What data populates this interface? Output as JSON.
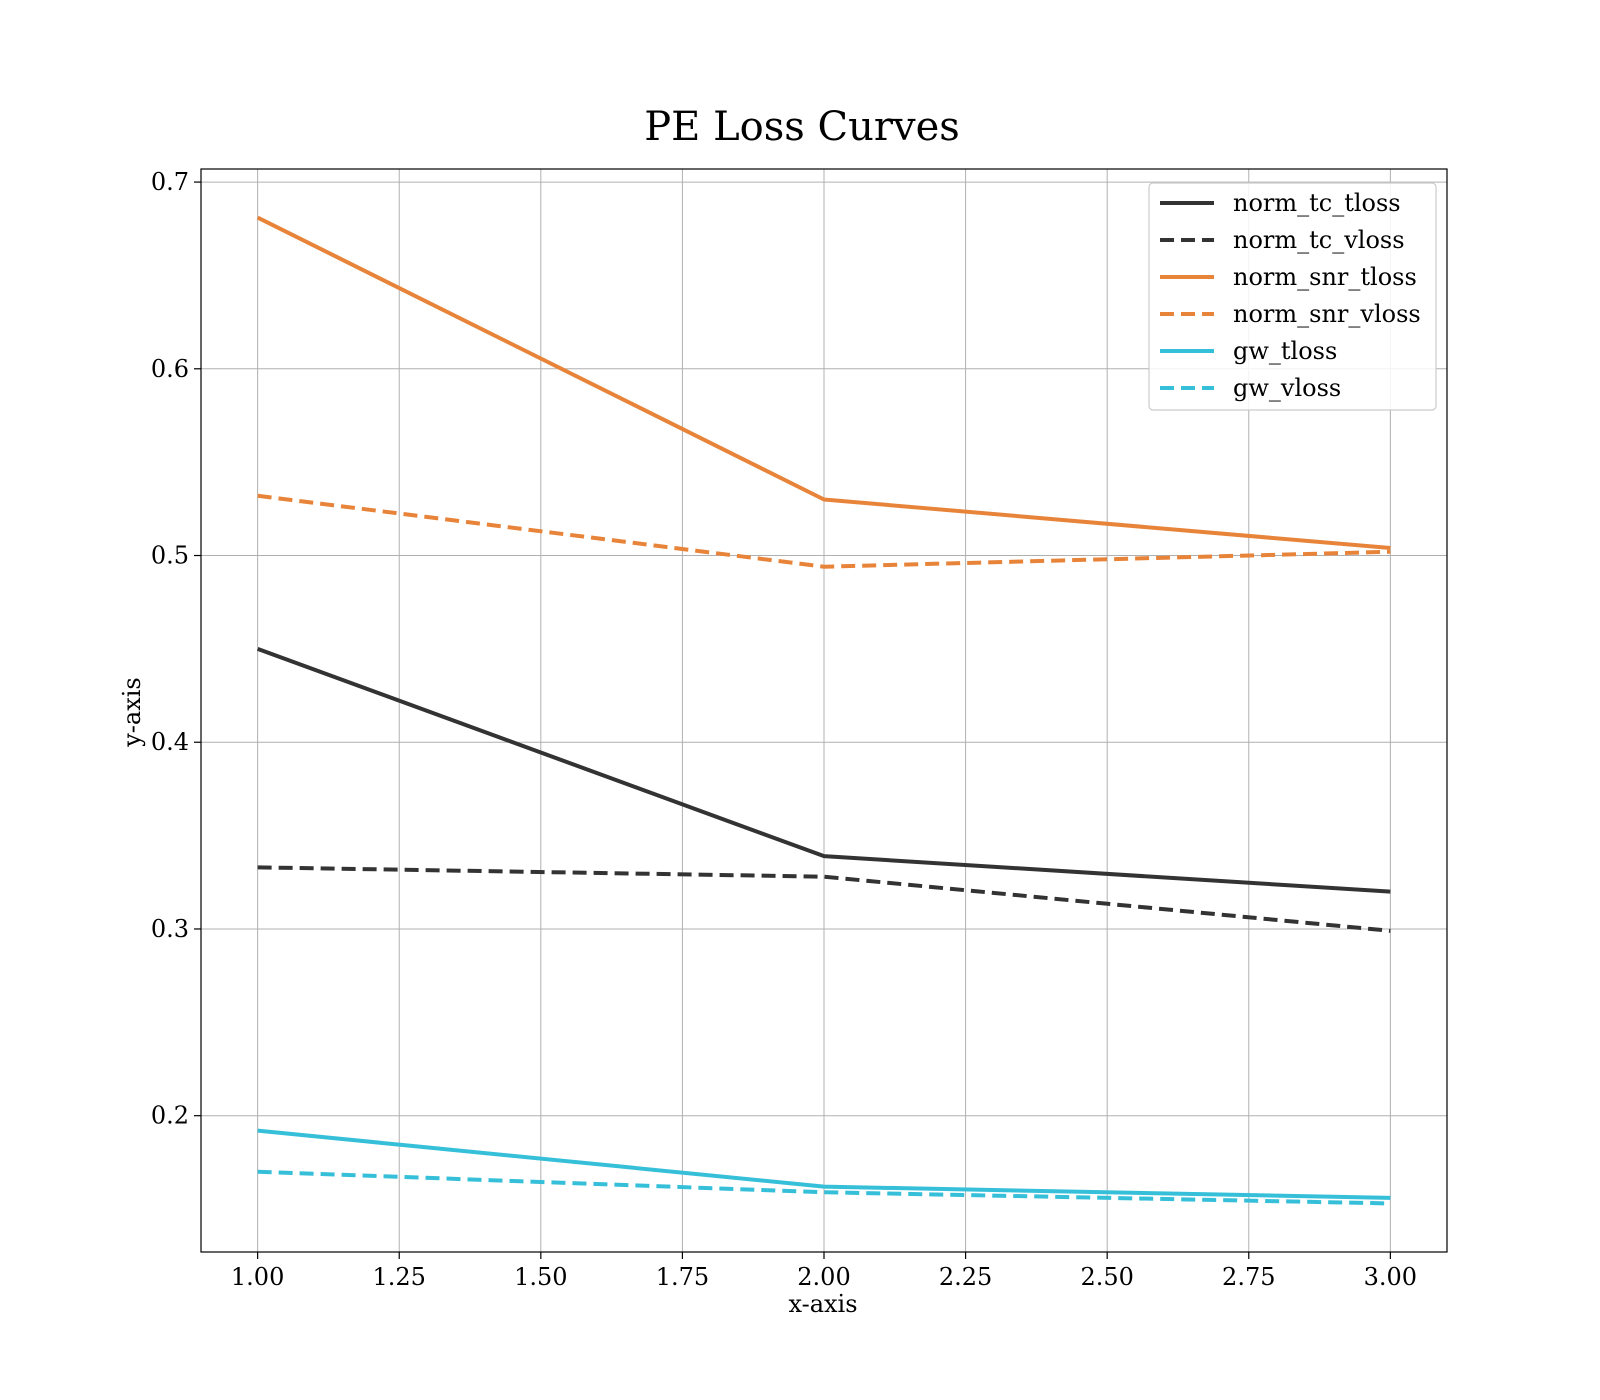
{
  "chart_data": {
    "type": "line",
    "title": "PE Loss Curves",
    "xlabel": "x-axis",
    "ylabel": "y-axis",
    "xlim": [
      0.9,
      3.1
    ],
    "ylim": [
      0.127,
      0.707
    ],
    "xticks": [
      1.0,
      1.25,
      1.5,
      1.75,
      2.0,
      2.25,
      2.5,
      2.75,
      3.0
    ],
    "xtick_labels": [
      "1.00",
      "1.25",
      "1.50",
      "1.75",
      "2.00",
      "2.25",
      "2.50",
      "2.75",
      "3.00"
    ],
    "yticks": [
      0.2,
      0.3,
      0.4,
      0.5,
      0.6,
      0.7
    ],
    "ytick_labels": [
      "0.2",
      "0.3",
      "0.4",
      "0.5",
      "0.6",
      "0.7"
    ],
    "grid": true,
    "legend_position": "top-right",
    "x": [
      1,
      2,
      3
    ],
    "series": [
      {
        "name": "norm_tc_tloss",
        "values": [
          0.45,
          0.339,
          0.32
        ],
        "color": "#333333",
        "dash": "solid"
      },
      {
        "name": "norm_tc_vloss",
        "values": [
          0.333,
          0.328,
          0.299
        ],
        "color": "#333333",
        "dash": "dashed"
      },
      {
        "name": "norm_snr_tloss",
        "values": [
          0.681,
          0.53,
          0.504
        ],
        "color": "#e8843a",
        "dash": "solid"
      },
      {
        "name": "norm_snr_vloss",
        "values": [
          0.532,
          0.494,
          0.502
        ],
        "color": "#e8843a",
        "dash": "dashed"
      },
      {
        "name": "gw_tloss",
        "values": [
          0.192,
          0.162,
          0.156
        ],
        "color": "#36bfd8",
        "dash": "solid"
      },
      {
        "name": "gw_vloss",
        "values": [
          0.17,
          0.159,
          0.153
        ],
        "color": "#36bfd8",
        "dash": "dashed"
      }
    ]
  }
}
